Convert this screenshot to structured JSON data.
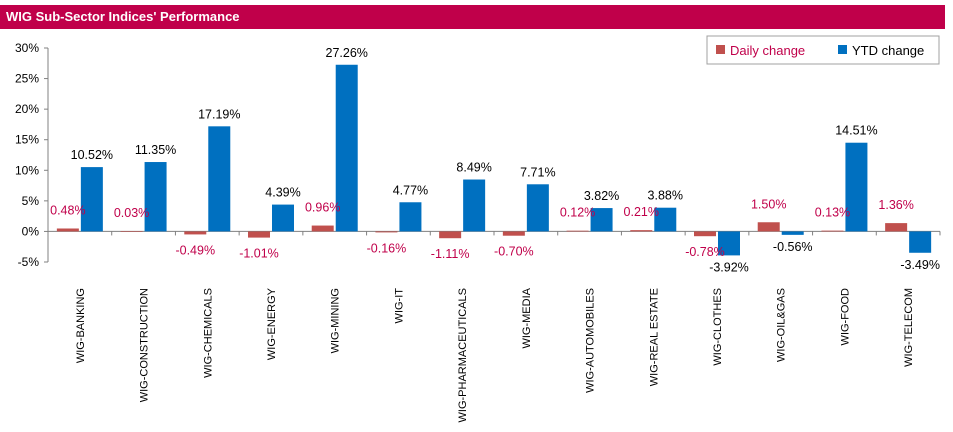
{
  "title": "WIG Sub-Sector Indices' Performance",
  "colors": {
    "daily": "#C0504D",
    "ytd": "#0070C0",
    "title_bg": "#C0004A",
    "daily_label": "#C0004A",
    "ytd_label": "#000000"
  },
  "chart_data": {
    "type": "bar",
    "title": "WIG Sub-Sector Indices' Performance",
    "xlabel": "",
    "ylabel": "",
    "ylim": [
      -5,
      30
    ],
    "yticks": [
      "-5%",
      "0%",
      "5%",
      "10%",
      "15%",
      "20%",
      "25%",
      "30%"
    ],
    "yticks_values": [
      -5,
      0,
      5,
      10,
      15,
      20,
      25,
      30
    ],
    "grid": false,
    "legend_position": "top-right",
    "categories": [
      "WIG-BANKING",
      "WIG-CONSTRUCTION",
      "WIG-CHEMICALS",
      "WIG-ENERGY",
      "WIG-MINING",
      "WIG-IT",
      "WIG-PHARMACEUTICALS",
      "WIG-MEDIA",
      "WIG-AUTOMOBILES",
      "WIG-REAL ESTATE",
      "WIG-CLOTHES",
      "WIG-OIL&GAS",
      "WIG-FOOD",
      "WIG-TELECOM"
    ],
    "series": [
      {
        "name": "Daily change",
        "values": [
          0.48,
          0.03,
          -0.49,
          -1.01,
          0.96,
          -0.16,
          -1.11,
          -0.7,
          0.12,
          0.21,
          -0.78,
          1.5,
          0.13,
          1.36
        ],
        "labels": [
          "0.48%",
          "0.03%",
          "-0.49%",
          "-1.01%",
          "0.96%",
          "-0.16%",
          "-1.11%",
          "-0.70%",
          "0.12%",
          "0.21%",
          "-0.78%",
          "1.50%",
          "0.13%",
          "1.36%"
        ]
      },
      {
        "name": "YTD change",
        "values": [
          10.52,
          11.35,
          17.19,
          4.39,
          27.26,
          4.77,
          8.49,
          7.71,
          3.82,
          3.88,
          -3.92,
          -0.56,
          14.51,
          -3.49
        ],
        "labels": [
          "10.52%",
          "11.35%",
          "17.19%",
          "4.39%",
          "27.26%",
          "4.77%",
          "8.49%",
          "7.71%",
          "3.82%",
          "3.88%",
          "-3.92%",
          "-0.56%",
          "14.51%",
          "-3.49%"
        ]
      }
    ]
  }
}
